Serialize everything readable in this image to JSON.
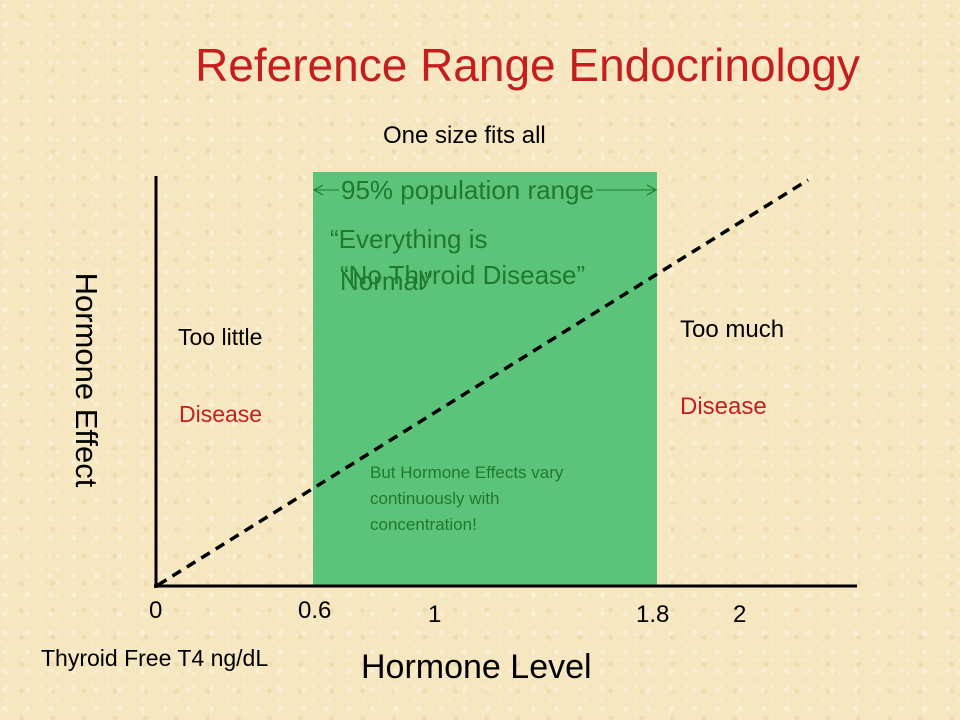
{
  "title": "Reference Range Endocrinology",
  "subtitle": "One size fits all",
  "y_axis_label": "Hormone Effect",
  "x_axis_label": "Hormone Level",
  "x_units_label": "Thyroid Free T4 ng/dL",
  "x_ticks": [
    "0",
    "0.6",
    "1",
    "1.8",
    "2"
  ],
  "range_band": {
    "label": "95% population range",
    "start": 0.6,
    "end": 1.8,
    "color": "#5cc47a",
    "text_line1": "“Everything is",
    "text_line2": "Normal”",
    "text_overlap": "“No Thyroid Disease”",
    "note_lines": [
      "But Hormone Effects vary",
      "continuously with",
      "concentration!"
    ]
  },
  "left_region": {
    "label": "Too little",
    "status": "Disease"
  },
  "right_region": {
    "label": "Too much",
    "status": "Disease"
  },
  "colors": {
    "title": "#c41e1e",
    "disease": "#c41e1e",
    "band_text": "#1f7a2e",
    "band_fill": "#5cc47a"
  }
}
